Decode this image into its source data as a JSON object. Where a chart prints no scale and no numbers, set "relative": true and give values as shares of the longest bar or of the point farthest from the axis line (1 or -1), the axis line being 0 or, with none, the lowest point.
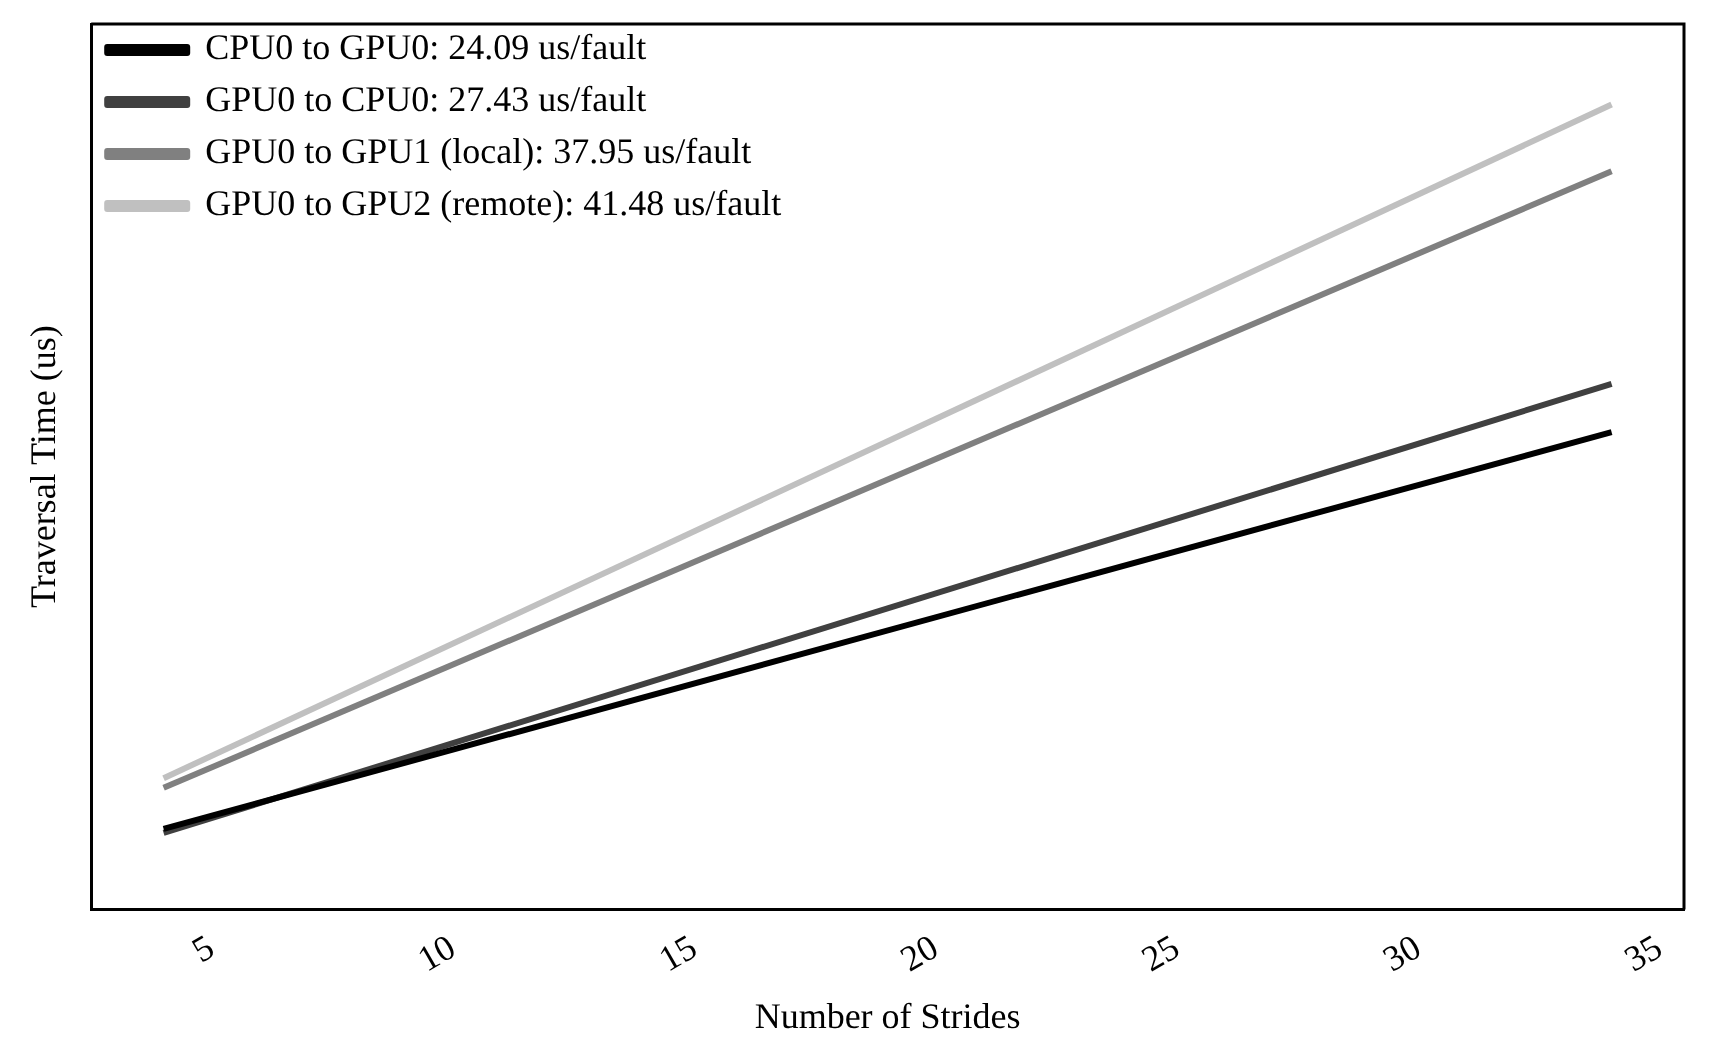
{
  "chart_data": {
    "type": "line",
    "relative": true,
    "xlabel": "Number of Strides",
    "ylabel": "Traversal Time (us)",
    "x": [
      4,
      34
    ],
    "xlim": [
      2.5,
      35.5
    ],
    "xticks": [
      5,
      10,
      15,
      20,
      25,
      30,
      35
    ],
    "tick_labels": "x",
    "legend": "top left",
    "grid": false,
    "marker": "none",
    "line_style": "solid",
    "series": [
      {
        "name": "CPU0 to GPU0: 24.09 us/fault",
        "color": "#000000",
        "values": [
          0.1,
          0.593
        ]
      },
      {
        "name": "GPU0 to CPU0: 27.43 us/fault",
        "color": "#404040",
        "values": [
          0.095,
          0.653
        ]
      },
      {
        "name": "GPU0 to GPU1 (local): 37.95 us/fault",
        "color": "#808080",
        "values": [
          0.151,
          0.917
        ]
      },
      {
        "name": "GPU0 to GPU2 (remote): 41.48 us/fault",
        "color": "#c0c0c0",
        "values": [
          0.163,
          1
        ]
      }
    ]
  }
}
